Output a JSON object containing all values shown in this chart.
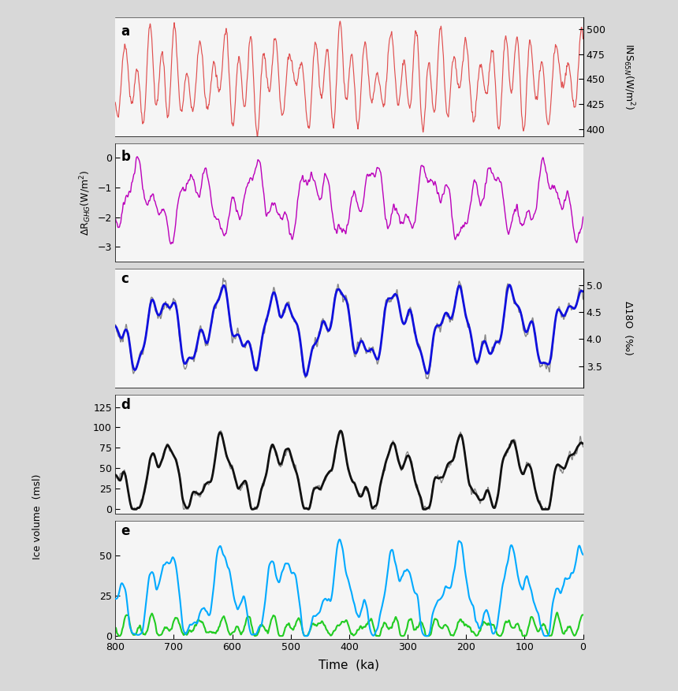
{
  "title": "",
  "xlabel": "Time  (ka)",
  "background_color": "#d8d8d8",
  "panel_bg": "#f5f5f5",
  "panel_labels": [
    "a",
    "b",
    "c",
    "d",
    "e"
  ],
  "panel_a": {
    "ylabel_right": "INS$_{65N}$(W/m$^2$)",
    "ylim": [
      393,
      512
    ],
    "yticks": [
      400,
      425,
      450,
      475,
      500
    ],
    "color": "#e05050"
  },
  "panel_b": {
    "ylabel_left": "ΔR$_{GHG}$(W/m$^2$)",
    "ylim": [
      -3.5,
      0.5
    ],
    "yticks": [
      -3,
      -2,
      -1,
      0
    ],
    "color": "#bb00bb"
  },
  "panel_c": {
    "ylabel_right": "Δ18O  (‰)",
    "ylim": [
      3.1,
      5.3
    ],
    "yticks": [
      3.5,
      4.0,
      4.5,
      5.0
    ],
    "color_blue": "#1010dd",
    "color_gray": "#888888"
  },
  "panel_d": {
    "ylim": [
      -5,
      140
    ],
    "yticks": [
      0,
      25,
      50,
      75,
      100,
      125
    ],
    "color_black": "#111111",
    "color_gray": "#888888"
  },
  "panel_e": {
    "ylim": [
      -2,
      72
    ],
    "yticks": [
      0,
      25,
      50
    ],
    "color_cyan": "#00aaff",
    "color_green": "#22cc22"
  },
  "shared_ylabel_de": "Ice volume  (msl)",
  "xlim_left": 800,
  "xlim_right": 0,
  "xticks": [
    800,
    700,
    600,
    500,
    400,
    300,
    200,
    100,
    0
  ]
}
